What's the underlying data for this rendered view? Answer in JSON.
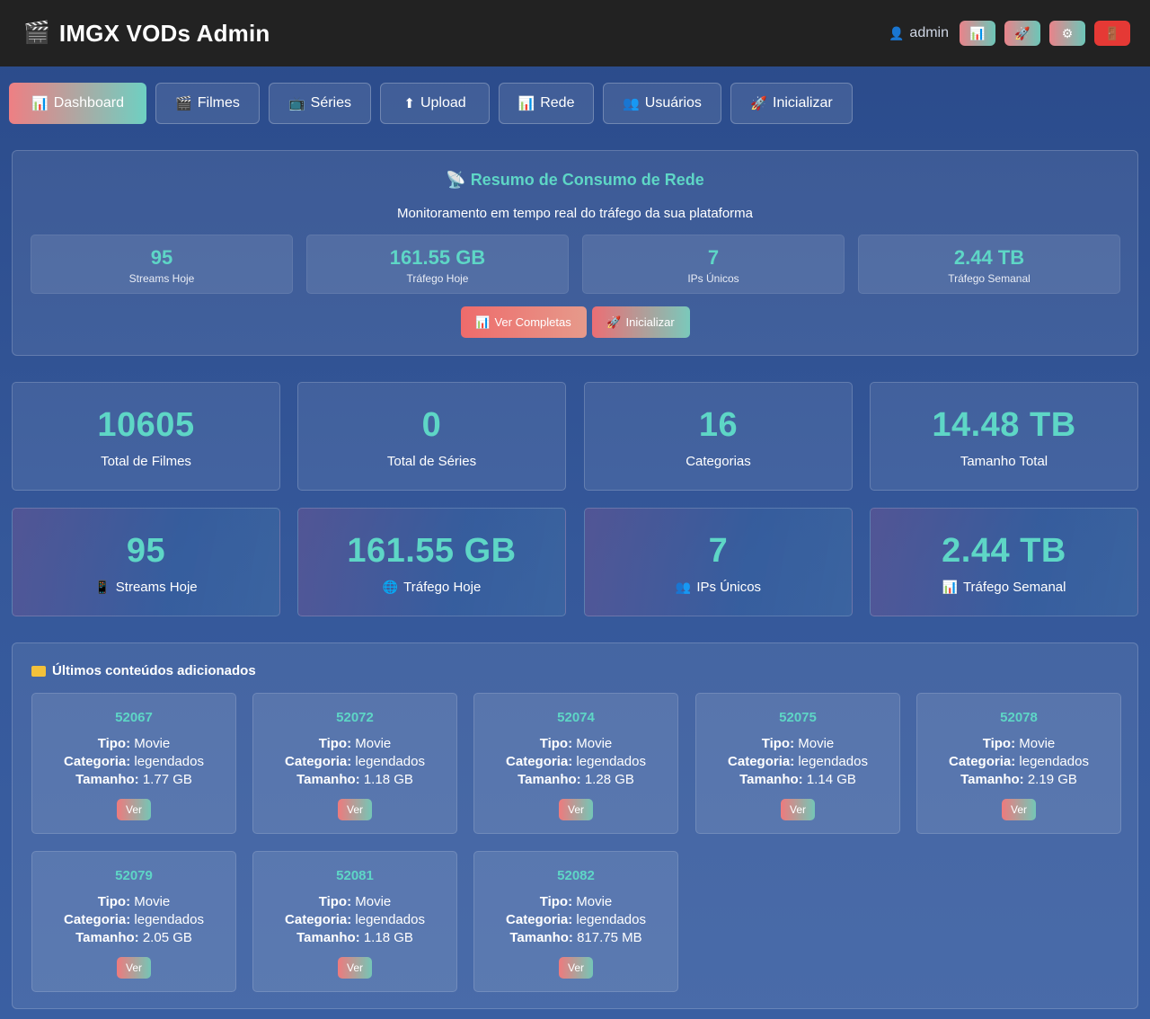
{
  "header": {
    "brand_icon": "🎬",
    "title": "IMGX VODs Admin",
    "user_icon": "👤",
    "username": "admin",
    "buttons": [
      {
        "icon": "📊",
        "name": "stats-icon"
      },
      {
        "icon": "🚀",
        "name": "rocket-icon"
      },
      {
        "icon": "⚙",
        "name": "gear-icon"
      },
      {
        "icon": "🚪",
        "name": "logout-icon"
      }
    ]
  },
  "nav": {
    "items": [
      {
        "icon": "📊",
        "label": "Dashboard"
      },
      {
        "icon": "🎬",
        "label": "Filmes"
      },
      {
        "icon": "📺",
        "label": "Séries"
      },
      {
        "icon": "⬆",
        "label": "Upload"
      },
      {
        "icon": "📊",
        "label": "Rede"
      },
      {
        "icon": "👥",
        "label": "Usuários"
      },
      {
        "icon": "🚀",
        "label": "Inicializar"
      }
    ]
  },
  "network": {
    "title_icon": "📡",
    "title": "Resumo de Consumo de Rede",
    "subtitle": "Monitoramento em tempo real do tráfego da sua plataforma",
    "stats": [
      {
        "value": "95",
        "label": "Streams Hoje"
      },
      {
        "value": "161.55 GB",
        "label": "Tráfego Hoje"
      },
      {
        "value": "7",
        "label": "IPs Únicos"
      },
      {
        "value": "2.44 TB",
        "label": "Tráfego Semanal"
      }
    ],
    "actions": [
      {
        "icon": "📊",
        "label": "Ver Completas"
      },
      {
        "icon": "🚀",
        "label": "Inicializar"
      }
    ]
  },
  "stats_row1": [
    {
      "value": "10605",
      "label": "Total de Filmes"
    },
    {
      "value": "0",
      "label": "Total de Séries"
    },
    {
      "value": "16",
      "label": "Categorias"
    },
    {
      "value": "14.48 TB",
      "label": "Tamanho Total"
    }
  ],
  "stats_row2": [
    {
      "value": "95",
      "icon": "📱",
      "label": "Streams Hoje"
    },
    {
      "value": "161.55 GB",
      "icon": "🌐",
      "label": "Tráfego Hoje"
    },
    {
      "value": "7",
      "icon": "👥",
      "label": "IPs Únicos"
    },
    {
      "value": "2.44 TB",
      "icon": "📊",
      "label": "Tráfego Semanal"
    }
  ],
  "recent": {
    "title": "Últimos conteúdos adicionados",
    "labels": {
      "tipo": "Tipo:",
      "categoria": "Categoria:",
      "tamanho": "Tamanho:",
      "ver": "Ver"
    },
    "items": [
      {
        "id": "52067",
        "tipo": "Movie",
        "categoria": "legendados",
        "tamanho": "1.77 GB"
      },
      {
        "id": "52072",
        "tipo": "Movie",
        "categoria": "legendados",
        "tamanho": "1.18 GB"
      },
      {
        "id": "52074",
        "tipo": "Movie",
        "categoria": "legendados",
        "tamanho": "1.28 GB"
      },
      {
        "id": "52075",
        "tipo": "Movie",
        "categoria": "legendados",
        "tamanho": "1.14 GB"
      },
      {
        "id": "52078",
        "tipo": "Movie",
        "categoria": "legendados",
        "tamanho": "2.19 GB"
      },
      {
        "id": "52079",
        "tipo": "Movie",
        "categoria": "legendados",
        "tamanho": "2.05 GB"
      },
      {
        "id": "52081",
        "tipo": "Movie",
        "categoria": "legendados",
        "tamanho": "1.18 GB"
      },
      {
        "id": "52082",
        "tipo": "Movie",
        "categoria": "legendados",
        "tamanho": "817.75 MB"
      }
    ]
  }
}
